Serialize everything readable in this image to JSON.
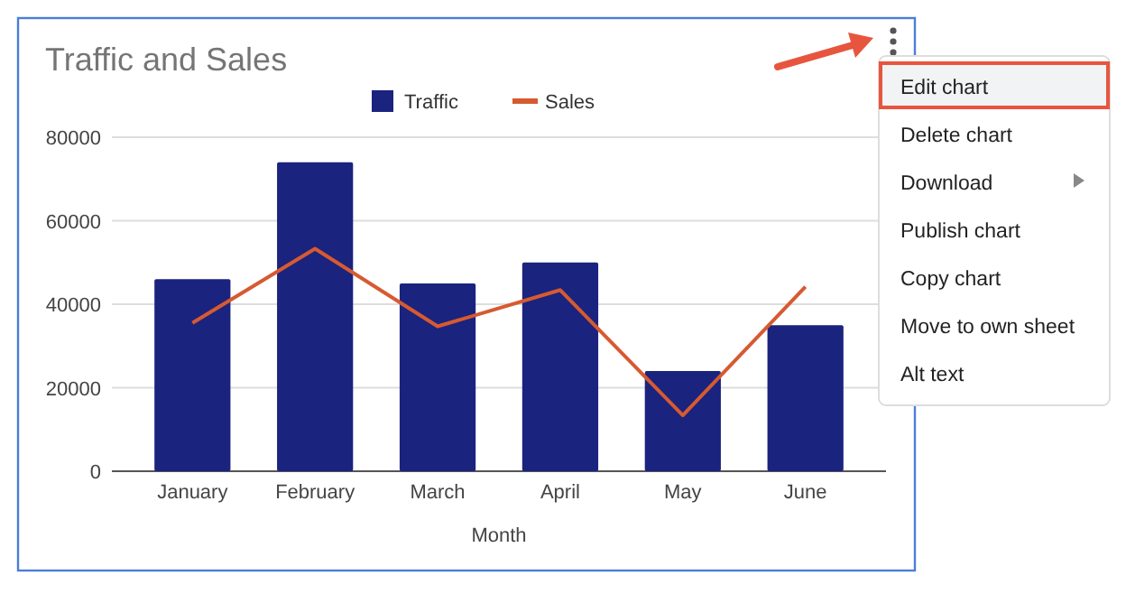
{
  "chart_data": {
    "type": "bar",
    "title": "Traffic and Sales",
    "xlabel": "Month",
    "categories": [
      "January",
      "February",
      "March",
      "April",
      "May",
      "June"
    ],
    "series": [
      {
        "name": "Traffic",
        "color": "#1a237e",
        "values": [
          46000,
          74000,
          45000,
          50000,
          24000,
          35000
        ]
      },
      {
        "name": "Sales",
        "type": "line",
        "color": "#d65a31",
        "values": [
          35500,
          53300,
          34700,
          43400,
          13400,
          44200
        ]
      }
    ],
    "ylim": [
      0,
      80000
    ],
    "yticks": [
      0,
      20000,
      40000,
      60000,
      80000
    ],
    "grid": "y",
    "legend": "top",
    "annotations": [
      "Edit chart",
      "Delete chart",
      "Download",
      "Publish chart",
      "Copy chart",
      "Move to own sheet",
      "Alt text"
    ]
  }
}
